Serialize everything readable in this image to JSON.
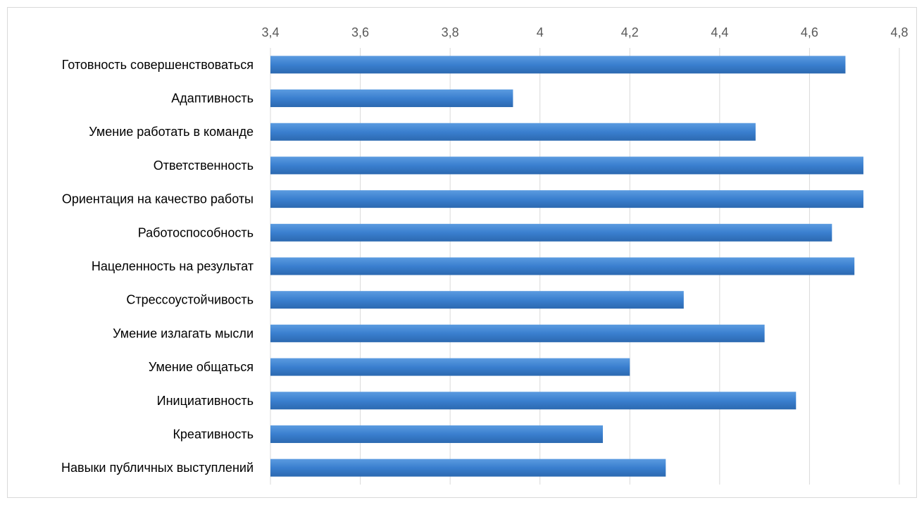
{
  "chart_data": {
    "type": "bar",
    "orientation": "horizontal",
    "title": "",
    "xlabel": "",
    "ylabel": "",
    "xlim": [
      3.4,
      4.8
    ],
    "tick_step": 0.2,
    "tick_labels": [
      "3,4",
      "3,6",
      "3,8",
      "4",
      "4,2",
      "4,4",
      "4,6",
      "4,8"
    ],
    "x_axis_position": "top",
    "grid": true,
    "legend": "none",
    "bar_color": "#3a7fcf",
    "categories": [
      "Готовность совершенствоваться",
      "Адаптивность",
      "Умение работать в команде",
      "Ответственность",
      "Ориентация на качество работы",
      "Работоспособность",
      "Нацеленность на результат",
      "Стрессоустойчивость",
      "Умение излагать мысли",
      "Умение общаться",
      "Инициативность",
      "Креативность",
      "Навыки публичных выступлений"
    ],
    "values": [
      4.68,
      3.94,
      4.48,
      4.72,
      4.72,
      4.65,
      4.7,
      4.32,
      4.5,
      4.2,
      4.57,
      4.14,
      4.28
    ]
  }
}
